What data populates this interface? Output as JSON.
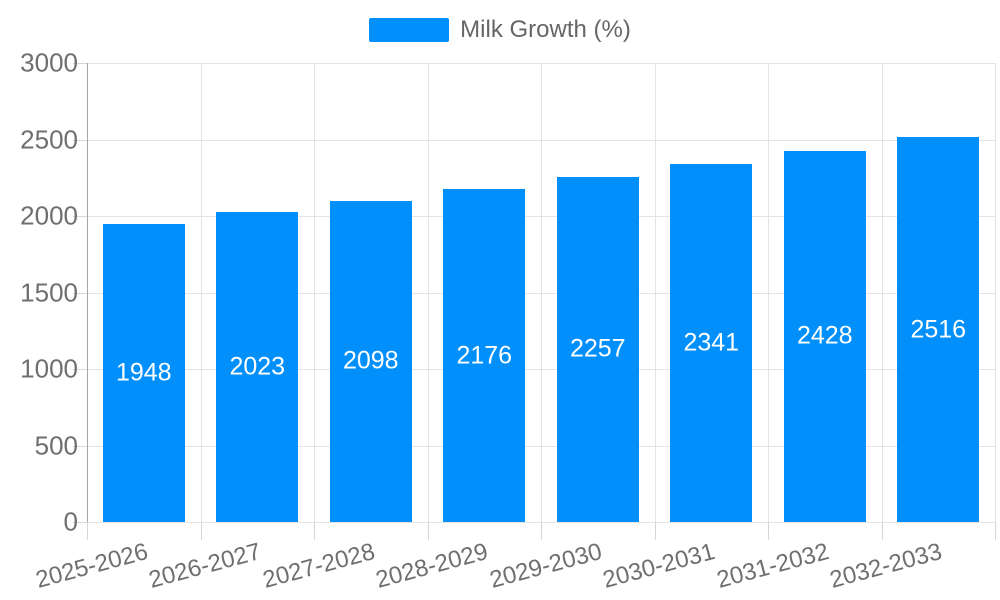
{
  "chart_data": {
    "type": "bar",
    "title": "",
    "legend": {
      "position": "top",
      "label": "Milk Growth (%)"
    },
    "categories": [
      "2025-2026",
      "2026-2027",
      "2027-2028",
      "2028-2029",
      "2029-2030",
      "2030-2031",
      "2031-2032",
      "2032-2033"
    ],
    "series": [
      {
        "name": "Milk Growth (%)",
        "values": [
          1948,
          2023,
          2098,
          2176,
          2257,
          2341,
          2428,
          2516
        ]
      }
    ],
    "value_labels_shown": true,
    "xlabel": "",
    "ylabel": "",
    "ylim": [
      0,
      3000
    ],
    "yticks": [
      0,
      500,
      1000,
      1500,
      2000,
      2500,
      3000
    ],
    "grid": true,
    "x_label_rotation_deg": -15,
    "legend_visible": true,
    "colors": {
      "bar": "#008FFB",
      "value_label": "#FFFFFF",
      "axis_label": "#6F6F6F",
      "legend_label": "#666666",
      "gridline": "#E4E4E4",
      "axis_tick": "#D6D6D6",
      "axis_border": "#A6A6A6",
      "background": "#FFFFFF"
    }
  }
}
